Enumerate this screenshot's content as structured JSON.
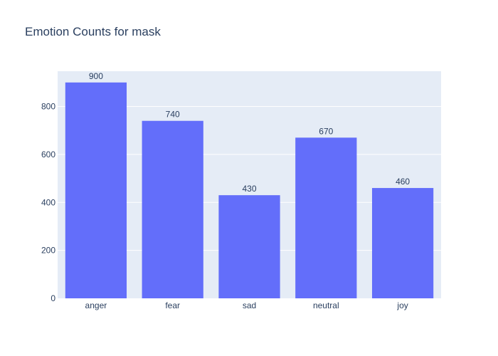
{
  "chart_data": {
    "type": "bar",
    "title": "Emotion Counts for mask",
    "xlabel": "",
    "ylabel": "",
    "categories": [
      "anger",
      "fear",
      "sad",
      "neutral",
      "joy"
    ],
    "values": [
      900,
      740,
      430,
      670,
      460
    ],
    "data_labels": [
      "900",
      "740",
      "430",
      "670",
      "460"
    ],
    "ylim": [
      0,
      947
    ],
    "yticks": [
      0,
      200,
      400,
      600,
      800
    ],
    "ytick_labels": [
      "0",
      "200",
      "400",
      "600",
      "800"
    ],
    "grid": true,
    "colors": {
      "bar": "#636efa",
      "plot_bg": "#e5ecf6",
      "grid": "#ffffff",
      "text": "#2a3f5f"
    }
  }
}
